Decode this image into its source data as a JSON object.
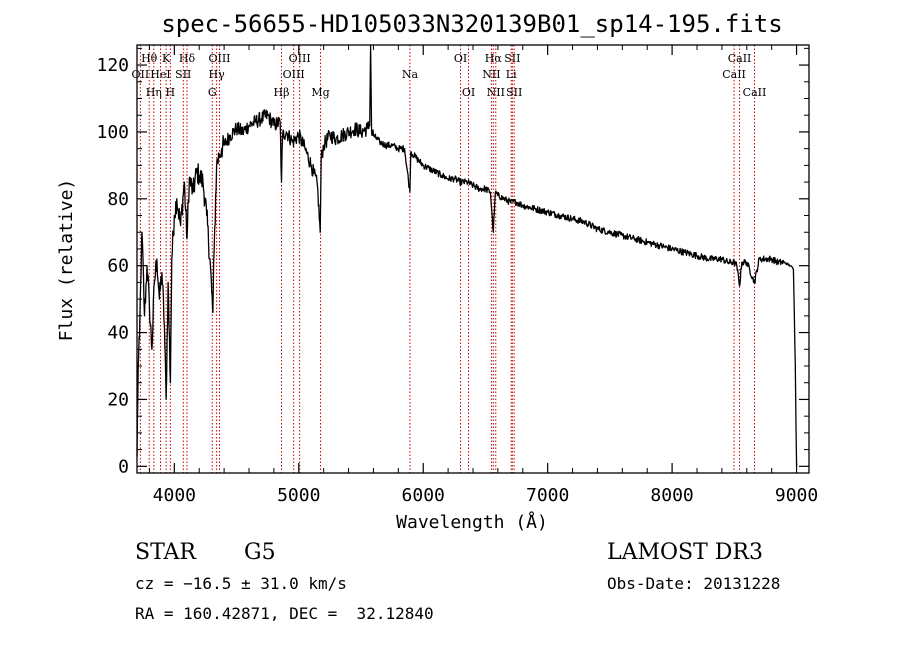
{
  "chart_data": {
    "type": "line",
    "title": "spec-56655-HD105033N320139B01_sp14-195.fits",
    "xlabel": "Wavelength (Å)",
    "ylabel": "Flux (relative)",
    "xlim": [
      3700,
      9100
    ],
    "ylim": [
      -2,
      126
    ],
    "xticks": [
      4000,
      5000,
      6000,
      7000,
      8000,
      9000
    ],
    "yticks": [
      0,
      20,
      40,
      60,
      80,
      100,
      120
    ],
    "xtick_labels": [
      "4000",
      "5000",
      "6000",
      "7000",
      "8000",
      "9000"
    ],
    "ytick_labels": [
      "0",
      "20",
      "40",
      "60",
      "80",
      "100",
      "120"
    ],
    "grid": false,
    "series": [
      {
        "name": "flux",
        "x": [
          3700,
          3710,
          3720,
          3730,
          3740,
          3760,
          3780,
          3800,
          3820,
          3840,
          3860,
          3880,
          3900,
          3920,
          3934,
          3950,
          3968,
          3980,
          4000,
          4020,
          4050,
          4080,
          4102,
          4120,
          4150,
          4180,
          4200,
          4230,
          4260,
          4290,
          4300,
          4310,
          4320,
          4340,
          4360,
          4380,
          4400,
          4450,
          4500,
          4550,
          4600,
          4650,
          4700,
          4750,
          4800,
          4850,
          4861,
          4870,
          4900,
          4950,
          5000,
          5050,
          5100,
          5150,
          5172,
          5180,
          5200,
          5250,
          5300,
          5350,
          5400,
          5450,
          5500,
          5550,
          5570,
          5577,
          5585,
          5600,
          5650,
          5700,
          5750,
          5800,
          5850,
          5893,
          5900,
          5950,
          6000,
          6050,
          6100,
          6150,
          6200,
          6250,
          6300,
          6350,
          6400,
          6450,
          6500,
          6540,
          6563,
          6580,
          6600,
          6650,
          6700,
          6750,
          6800,
          6900,
          7000,
          7100,
          7200,
          7300,
          7400,
          7500,
          7600,
          7700,
          7800,
          7900,
          8000,
          8100,
          8200,
          8300,
          8400,
          8450,
          8500,
          8520,
          8542,
          8560,
          8600,
          8662,
          8700,
          8800,
          8850,
          8900,
          8950,
          8975,
          8990,
          9000
        ],
        "y": [
          3,
          30,
          38,
          55,
          70,
          45,
          60,
          48,
          35,
          55,
          62,
          50,
          58,
          42,
          20,
          55,
          25,
          62,
          75,
          80,
          72,
          85,
          68,
          86,
          82,
          88,
          87,
          85,
          75,
          60,
          52,
          46,
          65,
          90,
          93,
          95,
          96,
          99,
          101,
          100,
          102,
          103,
          104,
          105,
          102,
          103,
          85,
          99,
          100,
          97,
          99,
          95,
          90,
          84,
          70,
          92,
          96,
          99,
          98,
          99,
          100,
          101,
          100,
          101,
          102,
          126,
          100,
          99,
          97,
          96,
          96,
          95,
          95,
          82,
          94,
          92,
          90,
          89,
          88,
          87,
          86,
          86,
          85,
          85,
          84,
          83,
          83,
          82,
          70,
          82,
          81,
          80,
          79,
          79,
          78,
          77,
          76,
          75,
          74,
          73,
          71,
          70,
          69,
          68,
          67,
          66,
          65,
          64,
          63,
          62,
          62,
          61,
          61,
          60,
          54,
          61,
          61,
          55,
          62,
          62,
          61,
          61,
          60,
          59,
          30,
          0
        ]
      }
    ],
    "line_marks": [
      {
        "label": "OII",
        "wavelength": 3727,
        "row": 2
      },
      {
        "label": "Hθ",
        "wavelength": 3798,
        "row": 1
      },
      {
        "label": "Hη",
        "wavelength": 3835,
        "row": 3
      },
      {
        "label": "HeI",
        "wavelength": 3889,
        "row": 2
      },
      {
        "label": "K",
        "wavelength": 3934,
        "row": 1
      },
      {
        "label": "H",
        "wavelength": 3968,
        "row": 3
      },
      {
        "label": "SII",
        "wavelength": 4072,
        "row": 2
      },
      {
        "label": "Hδ",
        "wavelength": 4102,
        "row": 1
      },
      {
        "label": "G",
        "wavelength": 4305,
        "row": 3
      },
      {
        "label": "Hγ",
        "wavelength": 4340,
        "row": 2
      },
      {
        "label": "OIII",
        "wavelength": 4363,
        "row": 1
      },
      {
        "label": "Hβ",
        "wavelength": 4861,
        "row": 3
      },
      {
        "label": "OIII",
        "wavelength": 4959,
        "row": 2
      },
      {
        "label": "OIII",
        "wavelength": 5007,
        "row": 1
      },
      {
        "label": "Mg",
        "wavelength": 5175,
        "row": 3
      },
      {
        "label": "Na",
        "wavelength": 5893,
        "row": 2
      },
      {
        "label": "OI",
        "wavelength": 6300,
        "row": 1
      },
      {
        "label": "OI",
        "wavelength": 6364,
        "row": 3
      },
      {
        "label": "NII",
        "wavelength": 6548,
        "row": 2
      },
      {
        "label": "Hα",
        "wavelength": 6563,
        "row": 1
      },
      {
        "label": "NII",
        "wavelength": 6583,
        "row": 3
      },
      {
        "label": "Li",
        "wavelength": 6707,
        "row": 2
      },
      {
        "label": "SII",
        "wavelength": 6716,
        "row": 1
      },
      {
        "label": "SII",
        "wavelength": 6731,
        "row": 3
      },
      {
        "label": "CaII",
        "wavelength": 8498,
        "row": 2
      },
      {
        "label": "CaII",
        "wavelength": 8542,
        "row": 1
      },
      {
        "label": "CaII",
        "wavelength": 8662,
        "row": 3
      }
    ],
    "line_mark_color": "#cc0000",
    "spectrum_color": "#000000"
  },
  "info": {
    "object_class": "STAR",
    "subclass": "G5",
    "survey": "LAMOST DR3",
    "cz": "cz = −16.5 ± 31.0 km/s",
    "obs_date": "Obs-Date: 20131228",
    "coords": "RA = 160.42871, DEC =  32.12840"
  }
}
